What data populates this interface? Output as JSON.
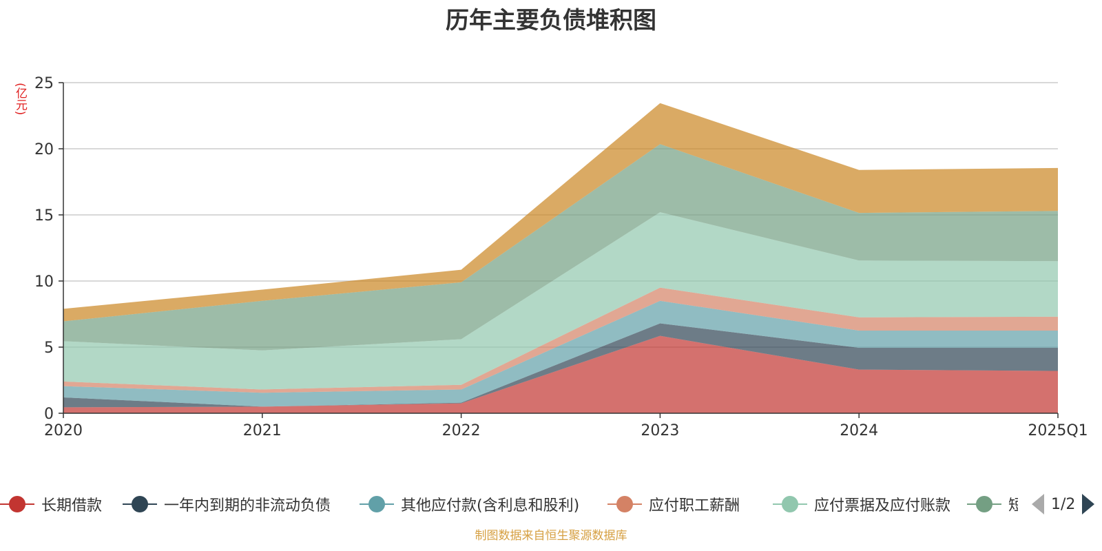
{
  "chart_data": {
    "type": "area",
    "title": "历年主要负债堆积图",
    "ylabel": "(亿元)",
    "xlabel": "",
    "ylim": [
      0,
      25
    ],
    "yticks": [
      0,
      5,
      10,
      15,
      20,
      25
    ],
    "grid": true,
    "legend_position": "bottom",
    "x": [
      "2020",
      "2021",
      "2022",
      "2023",
      "2024",
      "2025Q1"
    ],
    "series": [
      {
        "name": "长期借款",
        "color": "#c23531",
        "values": [
          0.45,
          0.5,
          0.75,
          5.85,
          3.3,
          3.2
        ]
      },
      {
        "name": "一年内到期的非流动负债",
        "color": "#2f4554",
        "values": [
          0.75,
          0.0,
          0.05,
          0.95,
          1.65,
          1.75
        ]
      },
      {
        "name": "其他应付款(含利息和股利)",
        "color": "#61a0a8",
        "values": [
          0.85,
          1.05,
          1.0,
          1.7,
          1.3,
          1.3
        ]
      },
      {
        "name": "应付职工薪酬",
        "color": "#d48265",
        "values": [
          0.35,
          0.25,
          0.35,
          1.0,
          1.0,
          1.05
        ]
      },
      {
        "name": "应付票据及应付账款",
        "color": "#91c7ae",
        "values": [
          3.05,
          2.95,
          3.45,
          5.7,
          4.3,
          4.2
        ]
      },
      {
        "name": "短",
        "color": "#749f83",
        "values": [
          1.5,
          3.75,
          4.3,
          5.15,
          3.6,
          3.8
        ]
      },
      {
        "color": "#ca8622",
        "values": [
          0.95,
          0.85,
          0.95,
          3.1,
          3.25,
          3.25
        ]
      }
    ]
  },
  "legend": {
    "page_indicator": "1/2"
  },
  "source_note": "制图数据来自恒生聚源数据库"
}
